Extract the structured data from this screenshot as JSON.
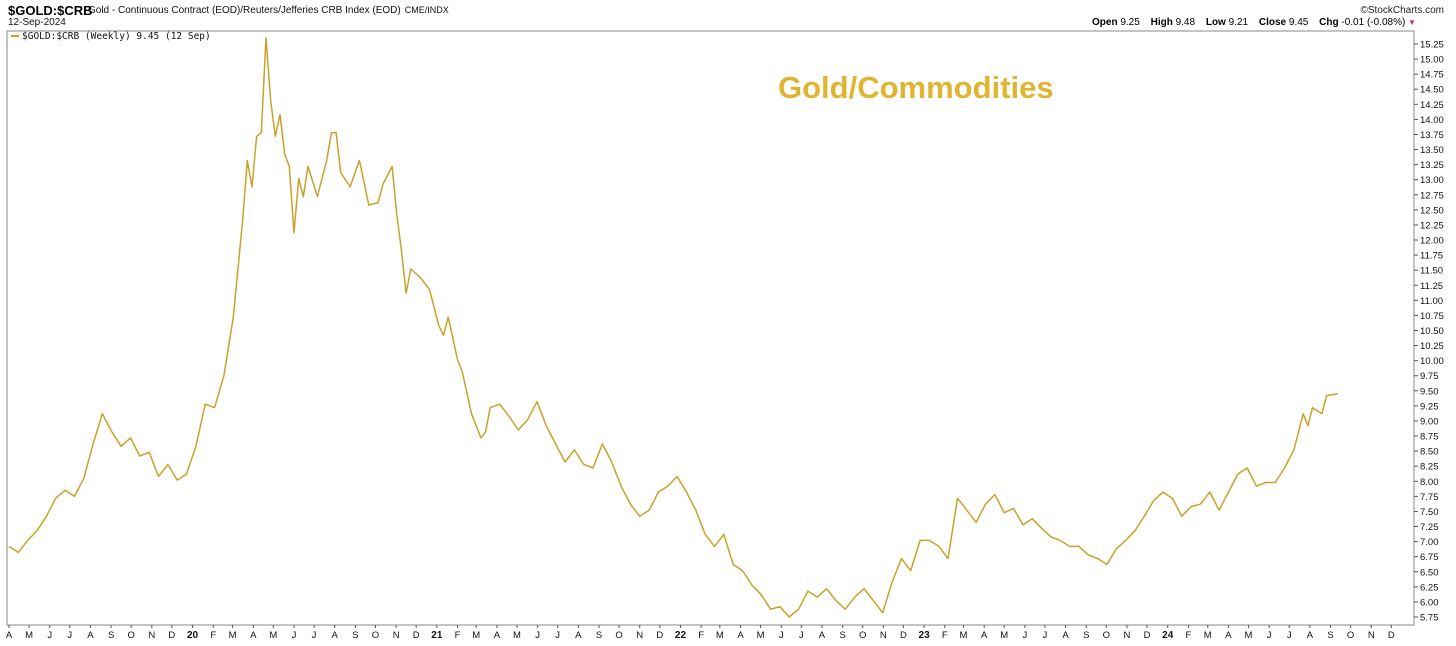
{
  "header": {
    "symbol": "$GOLD:$CRB",
    "description": "Gold - Continuous Contract (EOD)/Reuters/Jefferies CRB Index (EOD)",
    "exchange": "CME/INDX",
    "date": "12-Sep-2024",
    "brand": "©StockCharts.com",
    "open_label": "Open",
    "open": "9.25",
    "high_label": "High",
    "high": "9.48",
    "low_label": "Low",
    "low": "9.21",
    "close_label": "Close",
    "close": "9.45",
    "chg_label": "Chg",
    "chg": "-0.01 (-0.08%)",
    "chg_arrow": "▼"
  },
  "colors": {
    "line": "#c8a22a",
    "title": "#e0b431",
    "grid": "#cfcfcf",
    "border": "#888888"
  },
  "chart_data": {
    "type": "line",
    "title": "Gold/Commodities",
    "legend": "$GOLD:$CRB (Weekly) 9.45 (12 Sep)",
    "ylim": [
      5.75,
      15.25
    ],
    "yticks": [
      "5.75",
      "6.00",
      "6.25",
      "6.50",
      "6.75",
      "7.00",
      "7.25",
      "7.50",
      "7.75",
      "8.00",
      "8.25",
      "8.50",
      "8.75",
      "9.00",
      "9.25",
      "9.50",
      "9.75",
      "10.00",
      "10.25",
      "10.50",
      "10.75",
      "11.00",
      "11.25",
      "11.50",
      "11.75",
      "12.00",
      "12.25",
      "12.50",
      "12.75",
      "13.00",
      "13.25",
      "13.50",
      "13.75",
      "14.00",
      "14.25",
      "14.50",
      "14.75",
      "15.00",
      "15.25"
    ],
    "xticks": [
      "A",
      "M",
      "J",
      "J",
      "A",
      "S",
      "O",
      "N",
      "D",
      "20",
      "F",
      "M",
      "A",
      "M",
      "J",
      "J",
      "A",
      "S",
      "O",
      "N",
      "D",
      "21",
      "F",
      "M",
      "A",
      "M",
      "J",
      "J",
      "A",
      "S",
      "O",
      "N",
      "D",
      "22",
      "F",
      "M",
      "A",
      "M",
      "J",
      "J",
      "A",
      "S",
      "O",
      "N",
      "D",
      "23",
      "F",
      "M",
      "A",
      "M",
      "J",
      "J",
      "A",
      "S",
      "O",
      "N",
      "D",
      "24",
      "F",
      "M",
      "A",
      "M",
      "J",
      "J",
      "A",
      "S",
      "O",
      "N",
      "D"
    ],
    "series": [
      {
        "name": "$GOLD:$CRB",
        "points": [
          [
            "2019-04-01",
            6.92
          ],
          [
            "2019-04-15",
            6.82
          ],
          [
            "2019-04-29",
            7.02
          ],
          [
            "2019-05-13",
            7.18
          ],
          [
            "2019-05-27",
            7.42
          ],
          [
            "2019-06-10",
            7.72
          ],
          [
            "2019-06-24",
            7.85
          ],
          [
            "2019-07-08",
            7.75
          ],
          [
            "2019-07-22",
            8.05
          ],
          [
            "2019-08-05",
            8.62
          ],
          [
            "2019-08-19",
            9.12
          ],
          [
            "2019-09-02",
            8.82
          ],
          [
            "2019-09-16",
            8.58
          ],
          [
            "2019-09-30",
            8.72
          ],
          [
            "2019-10-14",
            8.42
          ],
          [
            "2019-10-28",
            8.48
          ],
          [
            "2019-11-11",
            8.08
          ],
          [
            "2019-11-25",
            8.28
          ],
          [
            "2019-12-09",
            8.02
          ],
          [
            "2019-12-23",
            8.12
          ],
          [
            "2020-01-06",
            8.58
          ],
          [
            "2020-01-20",
            9.28
          ],
          [
            "2020-02-03",
            9.22
          ],
          [
            "2020-02-17",
            9.75
          ],
          [
            "2020-03-02",
            10.72
          ],
          [
            "2020-03-16",
            12.32
          ],
          [
            "2020-03-23",
            13.32
          ],
          [
            "2020-03-30",
            12.88
          ],
          [
            "2020-04-06",
            13.72
          ],
          [
            "2020-04-13",
            13.78
          ],
          [
            "2020-04-20",
            15.35
          ],
          [
            "2020-04-27",
            14.32
          ],
          [
            "2020-05-04",
            13.72
          ],
          [
            "2020-05-11",
            14.08
          ],
          [
            "2020-05-18",
            13.42
          ],
          [
            "2020-05-25",
            13.22
          ],
          [
            "2020-06-01",
            12.12
          ],
          [
            "2020-06-08",
            13.02
          ],
          [
            "2020-06-15",
            12.72
          ],
          [
            "2020-06-22",
            13.22
          ],
          [
            "2020-07-06",
            12.72
          ],
          [
            "2020-07-20",
            13.32
          ],
          [
            "2020-07-27",
            13.78
          ],
          [
            "2020-08-03",
            13.78
          ],
          [
            "2020-08-10",
            13.12
          ],
          [
            "2020-08-24",
            12.88
          ],
          [
            "2020-09-07",
            13.32
          ],
          [
            "2020-09-21",
            12.58
          ],
          [
            "2020-10-05",
            12.62
          ],
          [
            "2020-10-12",
            12.92
          ],
          [
            "2020-10-26",
            13.22
          ],
          [
            "2020-11-02",
            12.42
          ],
          [
            "2020-11-09",
            11.82
          ],
          [
            "2020-11-16",
            11.12
          ],
          [
            "2020-11-23",
            11.52
          ],
          [
            "2020-12-07",
            11.38
          ],
          [
            "2020-12-21",
            11.18
          ],
          [
            "2021-01-04",
            10.58
          ],
          [
            "2021-01-11",
            10.42
          ],
          [
            "2021-01-18",
            10.72
          ],
          [
            "2021-02-01",
            10.02
          ],
          [
            "2021-02-08",
            9.82
          ],
          [
            "2021-02-22",
            9.12
          ],
          [
            "2021-03-08",
            8.72
          ],
          [
            "2021-03-15",
            8.82
          ],
          [
            "2021-03-22",
            9.22
          ],
          [
            "2021-04-05",
            9.28
          ],
          [
            "2021-04-19",
            9.08
          ],
          [
            "2021-05-03",
            8.85
          ],
          [
            "2021-05-17",
            9.02
          ],
          [
            "2021-05-31",
            9.32
          ],
          [
            "2021-06-14",
            8.92
          ],
          [
            "2021-06-28",
            8.62
          ],
          [
            "2021-07-12",
            8.32
          ],
          [
            "2021-07-26",
            8.52
          ],
          [
            "2021-08-09",
            8.28
          ],
          [
            "2021-08-23",
            8.22
          ],
          [
            "2021-09-06",
            8.62
          ],
          [
            "2021-09-20",
            8.32
          ],
          [
            "2021-10-04",
            7.92
          ],
          [
            "2021-10-18",
            7.62
          ],
          [
            "2021-11-01",
            7.42
          ],
          [
            "2021-11-15",
            7.52
          ],
          [
            "2021-11-29",
            7.82
          ],
          [
            "2021-12-13",
            7.92
          ],
          [
            "2021-12-27",
            8.08
          ],
          [
            "2022-01-10",
            7.82
          ],
          [
            "2022-01-24",
            7.52
          ],
          [
            "2022-02-07",
            7.12
          ],
          [
            "2022-02-21",
            6.92
          ],
          [
            "2022-03-07",
            7.12
          ],
          [
            "2022-03-21",
            6.62
          ],
          [
            "2022-04-04",
            6.52
          ],
          [
            "2022-04-18",
            6.28
          ],
          [
            "2022-05-02",
            6.12
          ],
          [
            "2022-05-16",
            5.88
          ],
          [
            "2022-05-30",
            5.92
          ],
          [
            "2022-06-13",
            5.75
          ],
          [
            "2022-06-27",
            5.88
          ],
          [
            "2022-07-11",
            6.18
          ],
          [
            "2022-07-25",
            6.08
          ],
          [
            "2022-08-08",
            6.22
          ],
          [
            "2022-08-22",
            6.02
          ],
          [
            "2022-09-05",
            5.88
          ],
          [
            "2022-09-19",
            6.08
          ],
          [
            "2022-10-03",
            6.22
          ],
          [
            "2022-10-17",
            6.02
          ],
          [
            "2022-10-31",
            5.82
          ],
          [
            "2022-11-14",
            6.32
          ],
          [
            "2022-11-28",
            6.72
          ],
          [
            "2022-12-12",
            6.52
          ],
          [
            "2022-12-26",
            7.02
          ],
          [
            "2023-01-09",
            7.02
          ],
          [
            "2023-01-23",
            6.92
          ],
          [
            "2023-02-06",
            6.72
          ],
          [
            "2023-02-20",
            7.72
          ],
          [
            "2023-03-06",
            7.52
          ],
          [
            "2023-03-20",
            7.32
          ],
          [
            "2023-04-03",
            7.62
          ],
          [
            "2023-04-17",
            7.78
          ],
          [
            "2023-05-01",
            7.48
          ],
          [
            "2023-05-15",
            7.55
          ],
          [
            "2023-05-29",
            7.28
          ],
          [
            "2023-06-12",
            7.38
          ],
          [
            "2023-06-26",
            7.22
          ],
          [
            "2023-07-10",
            7.08
          ],
          [
            "2023-07-24",
            7.02
          ],
          [
            "2023-08-07",
            6.92
          ],
          [
            "2023-08-21",
            6.92
          ],
          [
            "2023-09-04",
            6.78
          ],
          [
            "2023-09-18",
            6.72
          ],
          [
            "2023-10-02",
            6.62
          ],
          [
            "2023-10-16",
            6.88
          ],
          [
            "2023-10-30",
            7.02
          ],
          [
            "2023-11-13",
            7.18
          ],
          [
            "2023-11-27",
            7.42
          ],
          [
            "2023-12-11",
            7.68
          ],
          [
            "2023-12-25",
            7.82
          ],
          [
            "2024-01-08",
            7.72
          ],
          [
            "2024-01-22",
            7.42
          ],
          [
            "2024-02-05",
            7.58
          ],
          [
            "2024-02-19",
            7.62
          ],
          [
            "2024-03-04",
            7.82
          ],
          [
            "2024-03-18",
            7.52
          ],
          [
            "2024-04-01",
            7.82
          ],
          [
            "2024-04-15",
            8.12
          ],
          [
            "2024-04-29",
            8.22
          ],
          [
            "2024-05-13",
            7.92
          ],
          [
            "2024-05-27",
            7.98
          ],
          [
            "2024-06-10",
            7.98
          ],
          [
            "2024-06-24",
            8.22
          ],
          [
            "2024-07-08",
            8.52
          ],
          [
            "2024-07-22",
            9.12
          ],
          [
            "2024-07-29",
            8.92
          ],
          [
            "2024-08-05",
            9.22
          ],
          [
            "2024-08-19",
            9.12
          ],
          [
            "2024-08-26",
            9.42
          ],
          [
            "2024-09-12",
            9.45
          ]
        ]
      }
    ]
  }
}
